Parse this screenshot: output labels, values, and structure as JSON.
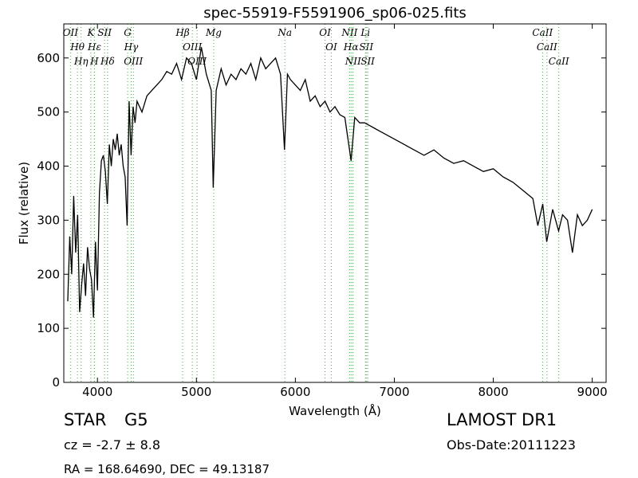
{
  "chart_data": {
    "type": "line",
    "title": "spec-55919-F5591906_sp06-025.fits",
    "x_label": "Wavelength (Å)",
    "y_label": "Flux (relative)",
    "xlim": [
      3660,
      9140
    ],
    "ylim": [
      0,
      663
    ],
    "xticks": [
      4000,
      5000,
      6000,
      7000,
      8000,
      9000
    ],
    "yticks": [
      0,
      100,
      200,
      300,
      400,
      500,
      600
    ],
    "color": "#000000",
    "annotation_color": "#44aa44",
    "x": [
      3700,
      3720,
      3740,
      3760,
      3780,
      3800,
      3820,
      3840,
      3860,
      3880,
      3900,
      3920,
      3940,
      3960,
      3980,
      4000,
      4020,
      4040,
      4060,
      4080,
      4100,
      4120,
      4140,
      4160,
      4180,
      4200,
      4220,
      4240,
      4260,
      4280,
      4300,
      4320,
      4340,
      4360,
      4380,
      4400,
      4450,
      4500,
      4550,
      4600,
      4650,
      4700,
      4750,
      4800,
      4850,
      4900,
      4950,
      5000,
      5050,
      5100,
      5150,
      5170,
      5200,
      5250,
      5300,
      5350,
      5400,
      5450,
      5500,
      5550,
      5600,
      5650,
      5700,
      5750,
      5800,
      5850,
      5890,
      5920,
      5950,
      6000,
      6050,
      6100,
      6150,
      6200,
      6250,
      6300,
      6350,
      6400,
      6450,
      6500,
      6563,
      6600,
      6650,
      6700,
      6750,
      6800,
      6850,
      6900,
      6950,
      7000,
      7100,
      7200,
      7300,
      7400,
      7500,
      7600,
      7700,
      7800,
      7900,
      8000,
      8100,
      8200,
      8300,
      8400,
      8450,
      8500,
      8540,
      8600,
      8660,
      8700,
      8750,
      8800,
      8850,
      8900,
      8950,
      9000
    ],
    "values": [
      150,
      270,
      200,
      345,
      240,
      310,
      130,
      180,
      220,
      160,
      250,
      210,
      190,
      120,
      260,
      170,
      350,
      410,
      420,
      390,
      330,
      440,
      400,
      450,
      430,
      460,
      420,
      440,
      400,
      380,
      290,
      520,
      420,
      510,
      480,
      520,
      500,
      530,
      540,
      550,
      560,
      575,
      570,
      590,
      560,
      600,
      590,
      560,
      620,
      570,
      540,
      360,
      540,
      580,
      550,
      570,
      560,
      580,
      570,
      590,
      560,
      600,
      580,
      590,
      600,
      570,
      430,
      570,
      560,
      550,
      540,
      560,
      520,
      530,
      510,
      520,
      500,
      510,
      495,
      490,
      410,
      490,
      480,
      480,
      475,
      470,
      465,
      460,
      455,
      450,
      440,
      430,
      420,
      430,
      415,
      405,
      410,
      400,
      390,
      395,
      380,
      370,
      355,
      340,
      290,
      330,
      260,
      320,
      280,
      310,
      300,
      240,
      310,
      290,
      300,
      320
    ],
    "annotations": [
      {
        "label": "OII",
        "x": 3727
      },
      {
        "label": "Hθ",
        "x": 3798
      },
      {
        "label": "Hη",
        "x": 3835
      },
      {
        "label": "K",
        "x": 3934
      },
      {
        "label": "Hε",
        "x": 3970
      },
      {
        "label": "H",
        "x": 3969
      },
      {
        "label": "SII",
        "x": 4072
      },
      {
        "label": "Hδ",
        "x": 4102
      },
      {
        "label": "G",
        "x": 4305
      },
      {
        "label": "Hγ",
        "x": 4341
      },
      {
        "label": "OIII",
        "x": 4363
      },
      {
        "label": "Hβ",
        "x": 4861
      },
      {
        "label": "OIII",
        "x": 4959
      },
      {
        "label": "OIII",
        "x": 5007
      },
      {
        "label": "Mg",
        "x": 5175
      },
      {
        "label": "Na",
        "x": 5894
      },
      {
        "label": "OI",
        "x": 6300
      },
      {
        "label": "OI",
        "x": 6363
      },
      {
        "label": "NII",
        "x": 6548
      },
      {
        "label": "Hα",
        "x": 6563
      },
      {
        "label": "NII",
        "x": 6583
      },
      {
        "label": "Li",
        "x": 6708
      },
      {
        "label": "SII",
        "x": 6716
      },
      {
        "label": "SII",
        "x": 6731
      },
      {
        "label": "CaII",
        "x": 8498
      },
      {
        "label": "CaII",
        "x": 8542
      },
      {
        "label": "CaII",
        "x": 8662
      }
    ]
  },
  "footer": {
    "class": "STAR",
    "subclass": "G5",
    "cz": "cz = -2.7 ± 8.8",
    "coords": "RA = 168.64690, DEC = 49.13187",
    "survey": "LAMOST DR1",
    "obs_date": "Obs-Date:20111223"
  }
}
